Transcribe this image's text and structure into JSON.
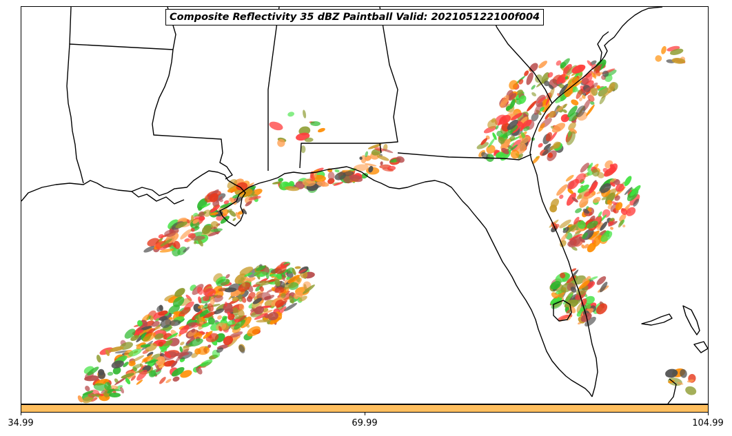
{
  "title": "Composite Reflectivity 35 dBZ Paintball Valid: 202105122100f004",
  "colorbar": {
    "color": "#ffbf5f",
    "ticks": [
      "34.99",
      "69.99",
      "104.99"
    ]
  },
  "paintball_colors": [
    "#ff3b3b",
    "#ff8c00",
    "#b84c4c",
    "#8b9a2c",
    "#2eb82e",
    "#3fe23f",
    "#ff9f4f",
    "#505050",
    "#c89b2c",
    "#e63a1e"
  ],
  "basemap": {
    "features": [
      "coastline",
      "state-borders"
    ],
    "states_visible": [
      "Texas",
      "Louisiana",
      "Arkansas",
      "Mississippi",
      "Alabama",
      "Georgia",
      "Florida",
      "South Carolina"
    ]
  }
}
